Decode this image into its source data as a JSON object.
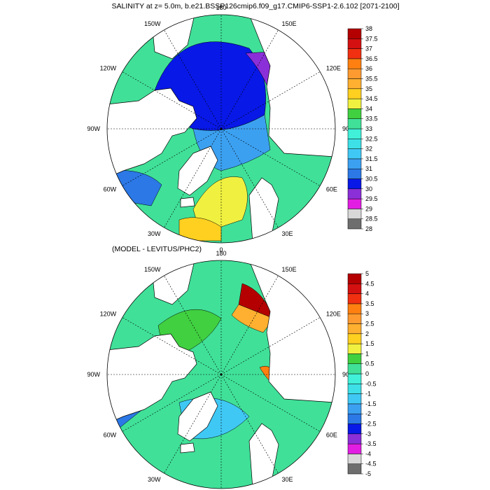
{
  "title": "SALINITY at z=   5.0m, b.e21.BSSP126cmip6.f09_g17.CMIP6-SSP1-2.6.102 [2071-2100]",
  "subtitle": "(MODEL - LEVITUS/PHC2)",
  "lon_labels": [
    "180",
    "150E",
    "120E",
    "90E",
    "60E",
    "30E",
    "0",
    "30W",
    "60W",
    "90W",
    "120W",
    "150W"
  ],
  "chart_data": [
    {
      "type": "heatmap",
      "projection": "north-polar-stereographic",
      "title": "SALINITY at z=   5.0m, b.e21.BSSP126cmip6.f09_g17.CMIP6-SSP1-2.6.102 [2071-2100]",
      "colorbar_levels": [
        "28",
        "28.5",
        "29",
        "29.5",
        "30",
        "30.5",
        "31",
        "31.5",
        "32",
        "32.5",
        "33",
        "33.5",
        "34",
        "34.5",
        "35",
        "35.5",
        "36",
        "36.5",
        "37",
        "37.5",
        "38"
      ],
      "colorbar_colors": [
        "#6e6e6e",
        "#d8d8d8",
        "#e21ee2",
        "#8b2fd8",
        "#0818e6",
        "#2b78e6",
        "#3ca0f0",
        "#40c8f5",
        "#3de0e6",
        "#40f0d8",
        "#40e098",
        "#40d040",
        "#f0f040",
        "#ffd020",
        "#ffb030",
        "#ff9a30",
        "#ff8010",
        "#f03010",
        "#d41010",
        "#b40000"
      ]
    },
    {
      "type": "heatmap",
      "projection": "north-polar-stereographic",
      "title": "(MODEL - LEVITUS/PHC2)",
      "colorbar_levels": [
        "-5",
        "-4.5",
        "-4",
        "-3.5",
        "-3",
        "-2.5",
        "-2",
        "-1.5",
        "-1",
        "-0.5",
        "0",
        "0.5",
        "1",
        "1.5",
        "2",
        "2.5",
        "3",
        "3.5",
        "4",
        "4.5",
        "5"
      ],
      "colorbar_colors": [
        "#6e6e6e",
        "#d8d8d8",
        "#e21ee2",
        "#8b2fd8",
        "#0818e6",
        "#2b78e6",
        "#3ca0f0",
        "#40c8f5",
        "#3de0e6",
        "#40f0d8",
        "#40e098",
        "#40d040",
        "#f0f040",
        "#ffd020",
        "#ffb030",
        "#ff9a30",
        "#ff8010",
        "#f03010",
        "#d41010",
        "#b40000"
      ]
    }
  ]
}
